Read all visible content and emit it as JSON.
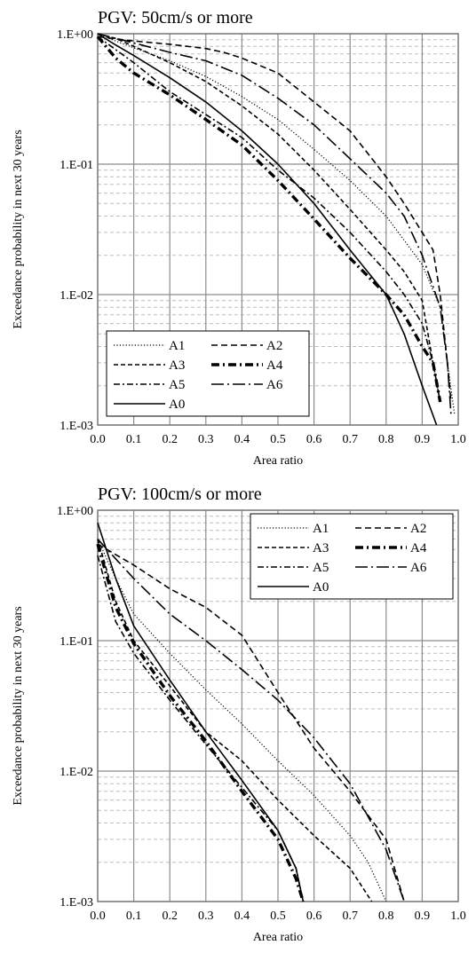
{
  "chart_data": [
    {
      "type": "line",
      "title": "PGV: 50cm/s or more",
      "xlabel": "Area ratio",
      "ylabel": "Exceedance probability in next 30 years",
      "xlim": [
        0,
        1
      ],
      "ylim": [
        0.001,
        1
      ],
      "yscale": "log",
      "xticks": [
        "0.0",
        "0.1",
        "0.2",
        "0.3",
        "0.4",
        "0.5",
        "0.6",
        "0.7",
        "0.8",
        "0.9",
        "1.0"
      ],
      "yticks": [
        "1.E-03",
        "1.E-02",
        "1.E-01",
        "1.E+00"
      ],
      "grid": true,
      "legend_position": "bottom-left",
      "series": [
        {
          "name": "A1",
          "style": "dotted",
          "points": [
            [
              0.0,
              1.0
            ],
            [
              0.05,
              0.88
            ],
            [
              0.1,
              0.78
            ],
            [
              0.2,
              0.62
            ],
            [
              0.3,
              0.47
            ],
            [
              0.4,
              0.33
            ],
            [
              0.5,
              0.22
            ],
            [
              0.6,
              0.13
            ],
            [
              0.7,
              0.075
            ],
            [
              0.8,
              0.04
            ],
            [
              0.9,
              0.017
            ],
            [
              0.95,
              0.008
            ],
            [
              0.97,
              0.003
            ],
            [
              0.99,
              0.0012
            ]
          ]
        },
        {
          "name": "A2",
          "style": "dashed",
          "points": [
            [
              0.0,
              0.95
            ],
            [
              0.1,
              0.88
            ],
            [
              0.2,
              0.83
            ],
            [
              0.3,
              0.77
            ],
            [
              0.35,
              0.72
            ],
            [
              0.4,
              0.65
            ],
            [
              0.5,
              0.5
            ],
            [
              0.6,
              0.3
            ],
            [
              0.7,
              0.18
            ],
            [
              0.8,
              0.08
            ],
            [
              0.85,
              0.05
            ],
            [
              0.9,
              0.03
            ],
            [
              0.93,
              0.022
            ],
            [
              0.95,
              0.01
            ],
            [
              0.97,
              0.003
            ],
            [
              0.98,
              0.0015
            ]
          ]
        },
        {
          "name": "A3",
          "style": "dashed-short",
          "points": [
            [
              0.0,
              1.0
            ],
            [
              0.05,
              0.92
            ],
            [
              0.1,
              0.8
            ],
            [
              0.2,
              0.6
            ],
            [
              0.3,
              0.43
            ],
            [
              0.4,
              0.28
            ],
            [
              0.5,
              0.17
            ],
            [
              0.6,
              0.09
            ],
            [
              0.7,
              0.045
            ],
            [
              0.8,
              0.022
            ],
            [
              0.85,
              0.015
            ],
            [
              0.9,
              0.009
            ],
            [
              0.93,
              0.003
            ],
            [
              0.95,
              0.0015
            ]
          ]
        },
        {
          "name": "A4",
          "style": "dash-dot-bold",
          "points": [
            [
              0.0,
              0.95
            ],
            [
              0.05,
              0.65
            ],
            [
              0.1,
              0.5
            ],
            [
              0.2,
              0.34
            ],
            [
              0.3,
              0.22
            ],
            [
              0.4,
              0.14
            ],
            [
              0.5,
              0.075
            ],
            [
              0.6,
              0.038
            ],
            [
              0.7,
              0.019
            ],
            [
              0.8,
              0.01
            ],
            [
              0.85,
              0.007
            ],
            [
              0.9,
              0.004
            ],
            [
              0.93,
              0.003
            ],
            [
              0.95,
              0.0015
            ]
          ]
        },
        {
          "name": "A5",
          "style": "dash-dot",
          "points": [
            [
              0.0,
              0.95
            ],
            [
              0.1,
              0.6
            ],
            [
              0.2,
              0.36
            ],
            [
              0.3,
              0.24
            ],
            [
              0.4,
              0.16
            ],
            [
              0.5,
              0.09
            ],
            [
              0.6,
              0.055
            ],
            [
              0.7,
              0.03
            ],
            [
              0.8,
              0.015
            ],
            [
              0.85,
              0.01
            ],
            [
              0.9,
              0.006
            ],
            [
              0.93,
              0.003
            ],
            [
              0.95,
              0.0015
            ]
          ]
        },
        {
          "name": "A6",
          "style": "long-dash-dot",
          "points": [
            [
              0.0,
              1.0
            ],
            [
              0.1,
              0.85
            ],
            [
              0.2,
              0.72
            ],
            [
              0.3,
              0.62
            ],
            [
              0.4,
              0.48
            ],
            [
              0.5,
              0.32
            ],
            [
              0.6,
              0.2
            ],
            [
              0.7,
              0.11
            ],
            [
              0.8,
              0.06
            ],
            [
              0.85,
              0.04
            ],
            [
              0.9,
              0.02
            ],
            [
              0.95,
              0.008
            ],
            [
              0.97,
              0.003
            ],
            [
              0.98,
              0.0012
            ]
          ]
        },
        {
          "name": "A0",
          "style": "solid",
          "points": [
            [
              0.0,
              1.0
            ],
            [
              0.05,
              0.82
            ],
            [
              0.1,
              0.68
            ],
            [
              0.2,
              0.46
            ],
            [
              0.3,
              0.3
            ],
            [
              0.4,
              0.18
            ],
            [
              0.5,
              0.1
            ],
            [
              0.6,
              0.05
            ],
            [
              0.7,
              0.022
            ],
            [
              0.8,
              0.01
            ],
            [
              0.85,
              0.005
            ],
            [
              0.9,
              0.002
            ],
            [
              0.94,
              0.001
            ]
          ]
        }
      ]
    },
    {
      "type": "line",
      "title": "PGV: 100cm/s or more",
      "xlabel": "Area ratio",
      "ylabel": "Exceedance probability in next 30 years",
      "xlim": [
        0,
        1
      ],
      "ylim": [
        0.001,
        1
      ],
      "yscale": "log",
      "xticks": [
        "0.0",
        "0.1",
        "0.2",
        "0.3",
        "0.4",
        "0.5",
        "0.6",
        "0.7",
        "0.8",
        "0.9",
        "1.0"
      ],
      "yticks": [
        "1.E-03",
        "1.E-02",
        "1.E-01",
        "1.E+00"
      ],
      "grid": true,
      "legend_position": "top-right",
      "series": [
        {
          "name": "A1",
          "style": "dotted",
          "points": [
            [
              0.0,
              0.6
            ],
            [
              0.05,
              0.3
            ],
            [
              0.1,
              0.16
            ],
            [
              0.2,
              0.08
            ],
            [
              0.3,
              0.042
            ],
            [
              0.4,
              0.023
            ],
            [
              0.5,
              0.012
            ],
            [
              0.6,
              0.0065
            ],
            [
              0.7,
              0.0032
            ],
            [
              0.75,
              0.002
            ],
            [
              0.8,
              0.001
            ]
          ]
        },
        {
          "name": "A2",
          "style": "dashed",
          "points": [
            [
              0.0,
              0.55
            ],
            [
              0.1,
              0.38
            ],
            [
              0.2,
              0.25
            ],
            [
              0.3,
              0.18
            ],
            [
              0.4,
              0.11
            ],
            [
              0.5,
              0.04
            ],
            [
              0.6,
              0.015
            ],
            [
              0.7,
              0.007
            ],
            [
              0.8,
              0.003
            ],
            [
              0.85,
              0.001
            ]
          ]
        },
        {
          "name": "A3",
          "style": "dashed-short",
          "points": [
            [
              0.0,
              0.6
            ],
            [
              0.05,
              0.2
            ],
            [
              0.1,
              0.1
            ],
            [
              0.2,
              0.045
            ],
            [
              0.3,
              0.02
            ],
            [
              0.4,
              0.012
            ],
            [
              0.5,
              0.006
            ],
            [
              0.6,
              0.0032
            ],
            [
              0.7,
              0.0018
            ],
            [
              0.76,
              0.001
            ]
          ]
        },
        {
          "name": "A4",
          "style": "dash-dot-bold",
          "points": [
            [
              0.0,
              0.55
            ],
            [
              0.05,
              0.18
            ],
            [
              0.1,
              0.095
            ],
            [
              0.2,
              0.038
            ],
            [
              0.3,
              0.017
            ],
            [
              0.4,
              0.007
            ],
            [
              0.5,
              0.003
            ],
            [
              0.55,
              0.0015
            ],
            [
              0.57,
              0.001
            ]
          ]
        },
        {
          "name": "A5",
          "style": "dash-dot",
          "points": [
            [
              0.0,
              0.45
            ],
            [
              0.05,
              0.14
            ],
            [
              0.1,
              0.08
            ],
            [
              0.2,
              0.035
            ],
            [
              0.3,
              0.016
            ],
            [
              0.4,
              0.0075
            ],
            [
              0.5,
              0.0035
            ],
            [
              0.55,
              0.0018
            ],
            [
              0.57,
              0.001
            ]
          ]
        },
        {
          "name": "A6",
          "style": "long-dash-dot",
          "points": [
            [
              0.0,
              0.6
            ],
            [
              0.1,
              0.3
            ],
            [
              0.2,
              0.16
            ],
            [
              0.3,
              0.1
            ],
            [
              0.4,
              0.06
            ],
            [
              0.5,
              0.035
            ],
            [
              0.6,
              0.018
            ],
            [
              0.7,
              0.008
            ],
            [
              0.8,
              0.0025
            ],
            [
              0.85,
              0.001
            ]
          ]
        },
        {
          "name": "A0",
          "style": "solid",
          "points": [
            [
              0.0,
              0.8
            ],
            [
              0.05,
              0.3
            ],
            [
              0.1,
              0.13
            ],
            [
              0.2,
              0.05
            ],
            [
              0.3,
              0.02
            ],
            [
              0.4,
              0.0085
            ],
            [
              0.5,
              0.0035
            ],
            [
              0.55,
              0.0018
            ],
            [
              0.57,
              0.001
            ]
          ]
        }
      ]
    }
  ]
}
